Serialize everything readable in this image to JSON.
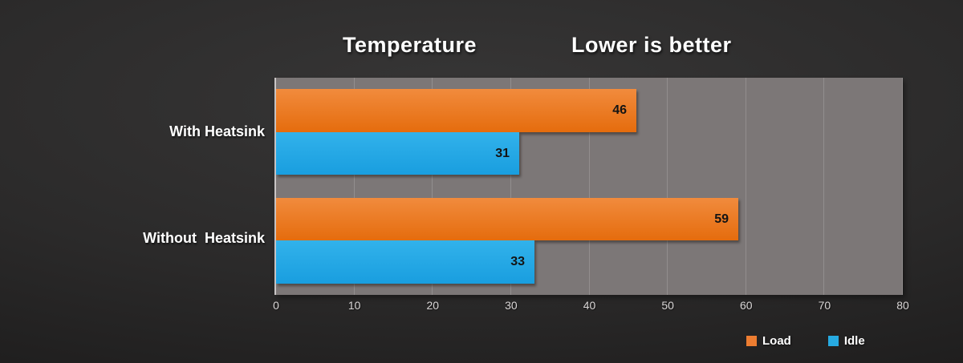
{
  "chart_data": {
    "type": "bar",
    "orientation": "horizontal",
    "title": "Temperature",
    "subtitle": "Lower is better",
    "categories": [
      "With Heatsink",
      "Without  Heatsink"
    ],
    "series": [
      {
        "name": "Load",
        "values": [
          46,
          59
        ],
        "color": "#ED7D31",
        "color_top": "#F18B3D",
        "color_bottom": "#E56C0D"
      },
      {
        "name": "Idle",
        "values": [
          31,
          33
        ],
        "color": "#27AAE1",
        "color_top": "#32B2EB",
        "color_bottom": "#199EDF"
      }
    ],
    "xlim": [
      0,
      80
    ],
    "xticks": [
      0,
      10,
      20,
      30,
      40,
      50,
      60,
      70,
      80
    ],
    "grid": true,
    "legend_position": "bottom-right",
    "value_labels": "inside-end",
    "value_label_color": "#141414",
    "plot_background": "#7C7777",
    "page_background": "#2b2a2a"
  }
}
